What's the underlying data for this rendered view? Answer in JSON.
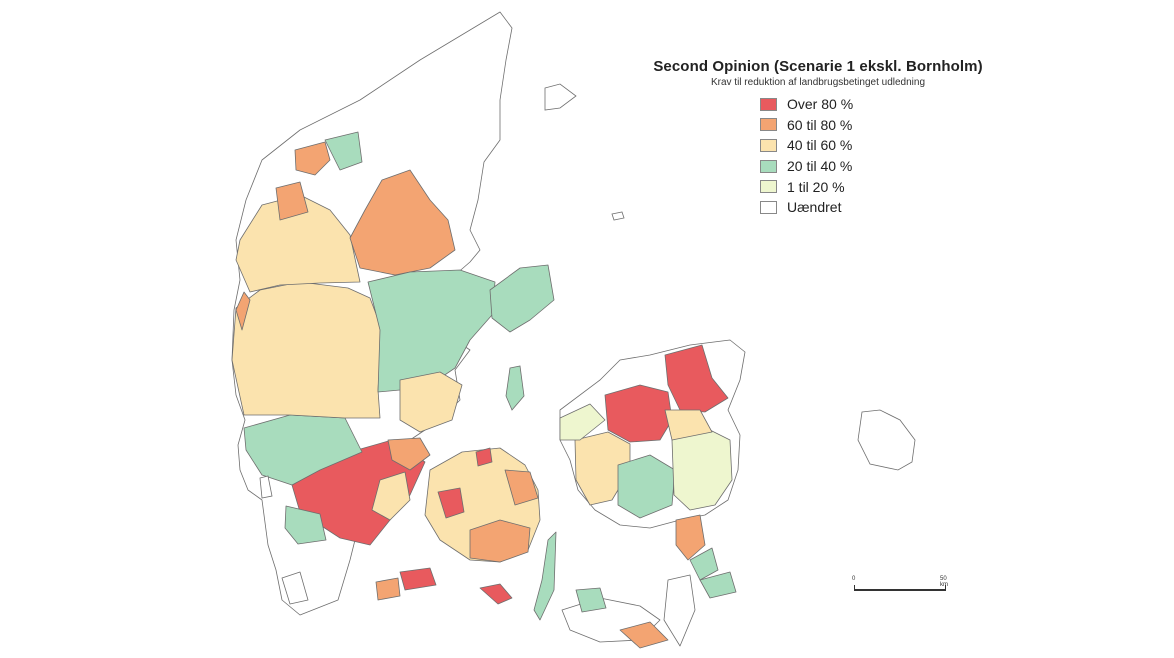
{
  "title": "Second Opinion (Scenarie 1 ekskl. Bornholm)",
  "subtitle": "Krav til reduktion af landbrugsbetinget udledning",
  "legend": [
    {
      "label": "Over 80 %",
      "color": "#e85a5e"
    },
    {
      "label": "60 til 80 %",
      "color": "#f3a472"
    },
    {
      "label": "40 til 60 %",
      "color": "#fbe3ae"
    },
    {
      "label": "20 til 40 %",
      "color": "#a8dcbd"
    },
    {
      "label": "1 til 20 %",
      "color": "#eef6cf"
    },
    {
      "label": "Uændret",
      "color": "#ffffff"
    }
  ],
  "scalebar": {
    "start": "0",
    "end": "50 km"
  }
}
